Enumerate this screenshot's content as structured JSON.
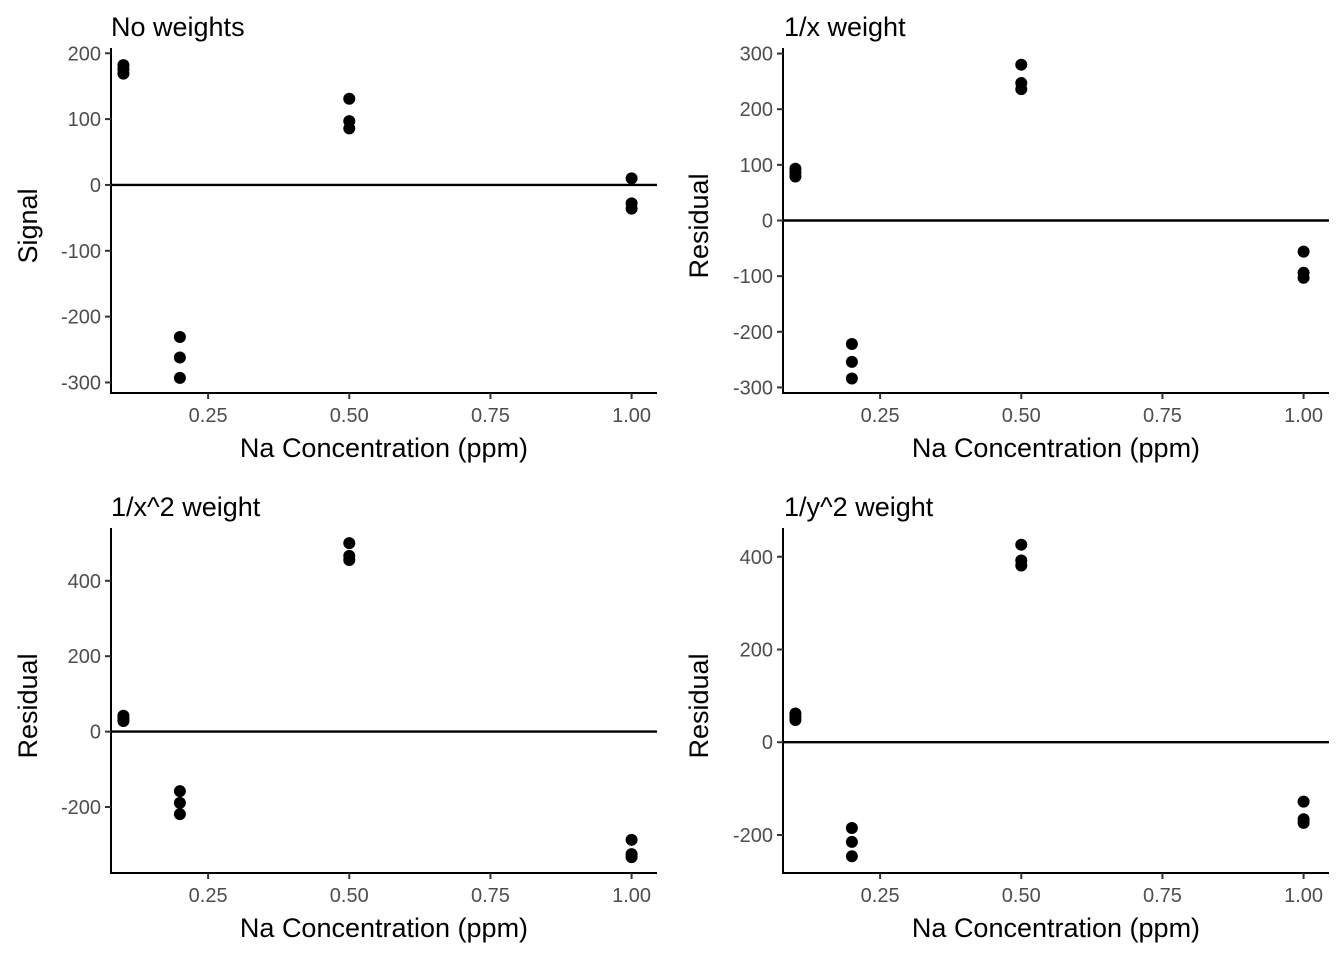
{
  "chart_data": [
    {
      "type": "scatter",
      "title": "No weights",
      "xlabel": "Na Concentration (ppm)",
      "ylabel": "Signal",
      "xlim": [
        0.078,
        1.045
      ],
      "ylim": [
        -316,
        208
      ],
      "xticks": [
        0.25,
        0.5,
        0.75,
        1.0
      ],
      "xtick_labels": [
        "0.25",
        "0.50",
        "0.75",
        "1.00"
      ],
      "yticks": [
        -300,
        -200,
        -100,
        0,
        100,
        200
      ],
      "ytick_labels": [
        "-300",
        "-200",
        "-100",
        "0",
        "100",
        "200"
      ],
      "hline": 0,
      "grid": false,
      "points": [
        {
          "x": 0.1,
          "y": 182
        },
        {
          "x": 0.1,
          "y": 176
        },
        {
          "x": 0.1,
          "y": 169
        },
        {
          "x": 0.2,
          "y": -231
        },
        {
          "x": 0.2,
          "y": -262
        },
        {
          "x": 0.2,
          "y": -293
        },
        {
          "x": 0.5,
          "y": 131
        },
        {
          "x": 0.5,
          "y": 97
        },
        {
          "x": 0.5,
          "y": 86
        },
        {
          "x": 1.0,
          "y": 10
        },
        {
          "x": 1.0,
          "y": -28
        },
        {
          "x": 1.0,
          "y": -36
        }
      ]
    },
    {
      "type": "scatter",
      "title": "1/x weight",
      "xlabel": "Na Concentration (ppm)",
      "ylabel": "Residual",
      "xlim": [
        0.078,
        1.045
      ],
      "ylim": [
        -310,
        310
      ],
      "xticks": [
        0.25,
        0.5,
        0.75,
        1.0
      ],
      "xtick_labels": [
        "0.25",
        "0.50",
        "0.75",
        "1.00"
      ],
      "yticks": [
        -300,
        -200,
        -100,
        0,
        100,
        200,
        300
      ],
      "ytick_labels": [
        "-300",
        "-200",
        "-100",
        "0",
        "100",
        "200",
        "300"
      ],
      "hline": 0,
      "grid": false,
      "points": [
        {
          "x": 0.1,
          "y": 93
        },
        {
          "x": 0.1,
          "y": 86
        },
        {
          "x": 0.1,
          "y": 79
        },
        {
          "x": 0.2,
          "y": -222
        },
        {
          "x": 0.2,
          "y": -254
        },
        {
          "x": 0.2,
          "y": -284
        },
        {
          "x": 0.5,
          "y": 280
        },
        {
          "x": 0.5,
          "y": 247
        },
        {
          "x": 0.5,
          "y": 236
        },
        {
          "x": 1.0,
          "y": -56
        },
        {
          "x": 1.0,
          "y": -94
        },
        {
          "x": 1.0,
          "y": -103
        }
      ]
    },
    {
      "type": "scatter",
      "title": "1/x^2 weight",
      "xlabel": "Na Concentration (ppm)",
      "ylabel": "Residual",
      "xlim": [
        0.078,
        1.045
      ],
      "ylim": [
        -375,
        540
      ],
      "xticks": [
        0.25,
        0.5,
        0.75,
        1.0
      ],
      "xtick_labels": [
        "0.25",
        "0.50",
        "0.75",
        "1.00"
      ],
      "yticks": [
        -200,
        0,
        200,
        400
      ],
      "ytick_labels": [
        "-200",
        "0",
        "200",
        "400"
      ],
      "hline": 0,
      "grid": false,
      "points": [
        {
          "x": 0.1,
          "y": 42
        },
        {
          "x": 0.1,
          "y": 35
        },
        {
          "x": 0.1,
          "y": 28
        },
        {
          "x": 0.2,
          "y": -158
        },
        {
          "x": 0.2,
          "y": -189
        },
        {
          "x": 0.2,
          "y": -219
        },
        {
          "x": 0.5,
          "y": 500
        },
        {
          "x": 0.5,
          "y": 466
        },
        {
          "x": 0.5,
          "y": 455
        },
        {
          "x": 1.0,
          "y": -287
        },
        {
          "x": 1.0,
          "y": -325
        },
        {
          "x": 1.0,
          "y": -333
        }
      ]
    },
    {
      "type": "scatter",
      "title": "1/y^2 weight",
      "xlabel": "Na Concentration (ppm)",
      "ylabel": "Residual",
      "xlim": [
        0.078,
        1.045
      ],
      "ylim": [
        -282,
        462
      ],
      "xticks": [
        0.25,
        0.5,
        0.75,
        1.0
      ],
      "xtick_labels": [
        "0.25",
        "0.50",
        "0.75",
        "1.00"
      ],
      "yticks": [
        -200,
        0,
        200,
        400
      ],
      "ytick_labels": [
        "-200",
        "0",
        "200",
        "400"
      ],
      "hline": 0,
      "grid": false,
      "points": [
        {
          "x": 0.1,
          "y": 62
        },
        {
          "x": 0.1,
          "y": 55
        },
        {
          "x": 0.1,
          "y": 48
        },
        {
          "x": 0.2,
          "y": -185
        },
        {
          "x": 0.2,
          "y": -215
        },
        {
          "x": 0.2,
          "y": -246
        },
        {
          "x": 0.5,
          "y": 426
        },
        {
          "x": 0.5,
          "y": 392
        },
        {
          "x": 0.5,
          "y": 381
        },
        {
          "x": 1.0,
          "y": -128
        },
        {
          "x": 1.0,
          "y": -166
        },
        {
          "x": 1.0,
          "y": -174
        }
      ]
    }
  ]
}
